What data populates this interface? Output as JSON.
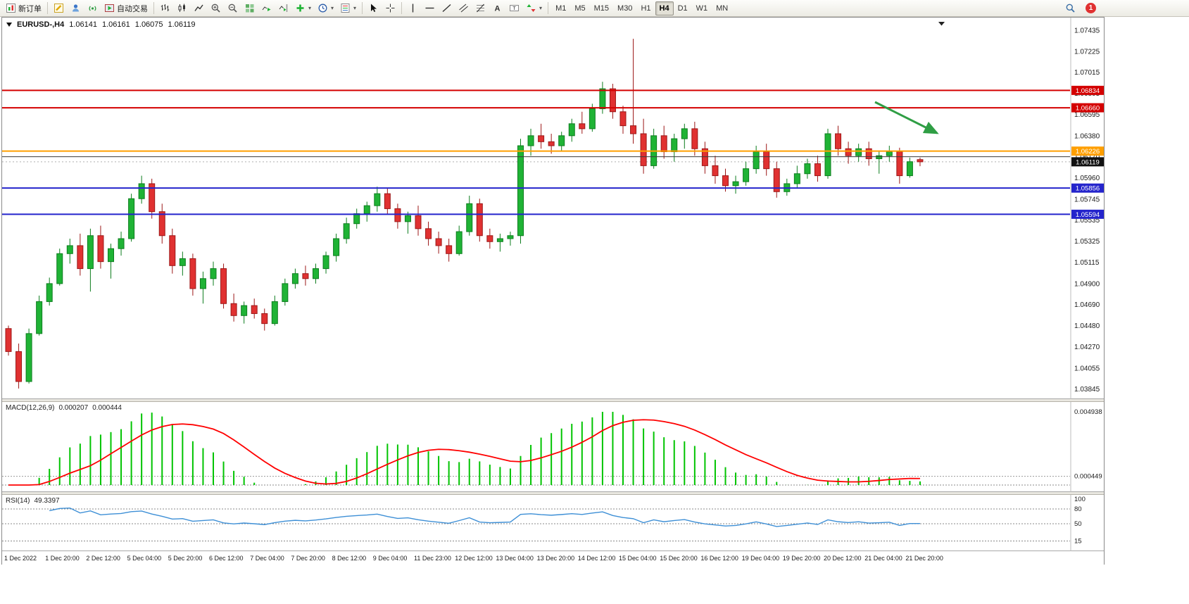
{
  "toolbar": {
    "new_order": "新订单",
    "auto_trading": "自动交易",
    "timeframes": [
      "M1",
      "M5",
      "M15",
      "M30",
      "H1",
      "H4",
      "D1",
      "W1",
      "MN"
    ],
    "active_timeframe": "H4",
    "notification_count": "1",
    "icons": {
      "text_tool": "A",
      "label_tool": "T"
    }
  },
  "window": {
    "symbol": "EURUSD-,H4",
    "ohlc": {
      "open": "1.06141",
      "high": "1.06161",
      "low": "1.06075",
      "close": "1.06119"
    }
  },
  "chart_data": {
    "type": "candlestick",
    "symbol": "EURUSD",
    "timeframe": "H4",
    "ylim": [
      1.038,
      1.0752
    ],
    "up_color": "#1fb335",
    "down_color": "#e03131",
    "up_border": "#0d7d1e",
    "down_border": "#9c1818",
    "y_ticks": [
      "1.07435",
      "1.07225",
      "1.07015",
      "1.06805",
      "1.06595",
      "1.06380",
      "1.06170",
      "1.05960",
      "1.05745",
      "1.05535",
      "1.05325",
      "1.05115",
      "1.04900",
      "1.04690",
      "1.04480",
      "1.04270",
      "1.04055",
      "1.03845"
    ],
    "x_labels": [
      "1 Dec 2022",
      "1 Dec 20:00",
      "2 Dec 12:00",
      "5 Dec 04:00",
      "5 Dec 20:00",
      "6 Dec 12:00",
      "7 Dec 04:00",
      "7 Dec 20:00",
      "8 Dec 12:00",
      "9 Dec 04:00",
      "11 Dec 23:00",
      "12 Dec 12:00",
      "13 Dec 04:00",
      "13 Dec 20:00",
      "14 Dec 12:00",
      "15 Dec 04:00",
      "15 Dec 20:00",
      "16 Dec 12:00",
      "19 Dec 04:00",
      "19 Dec 20:00",
      "20 Dec 12:00",
      "21 Dec 04:00",
      "21 Dec 20:00"
    ],
    "hlines": [
      {
        "price": 1.06834,
        "color": "#d40000",
        "width": 2,
        "label": "1.06834"
      },
      {
        "price": 1.0666,
        "color": "#d40000",
        "width": 2,
        "label": "1.06660"
      },
      {
        "price": 1.06226,
        "color": "#ff9f00",
        "width": 2,
        "label": "1.06226"
      },
      {
        "price": 1.0617,
        "color": "#3a3a3a",
        "width": 1,
        "label": null
      },
      {
        "price": 1.05856,
        "color": "#2424cc",
        "width": 2,
        "label": "1.05856"
      },
      {
        "price": 1.05594,
        "color": "#2424cc",
        "width": 2,
        "label": "1.05594"
      }
    ],
    "bid": {
      "price": 1.06119,
      "label": "1.06119",
      "box_color": "#111111"
    },
    "annotation_arrow": {
      "color": "#2f9e44"
    },
    "candles": [
      [
        1.0445,
        1.0448,
        1.0418,
        1.0422
      ],
      [
        1.0422,
        1.043,
        1.0385,
        1.0392
      ],
      [
        1.0392,
        1.0445,
        1.039,
        1.044
      ],
      [
        1.044,
        1.0478,
        1.0438,
        1.0472
      ],
      [
        1.0472,
        1.0496,
        1.0468,
        1.049
      ],
      [
        1.049,
        1.0525,
        1.0488,
        1.052
      ],
      [
        1.052,
        1.0535,
        1.051,
        1.0528
      ],
      [
        1.0528,
        1.054,
        1.0498,
        1.0505
      ],
      [
        1.0505,
        1.0545,
        1.0482,
        1.0538
      ],
      [
        1.0538,
        1.0548,
        1.0505,
        1.0512
      ],
      [
        1.0512,
        1.053,
        1.0495,
        1.0525
      ],
      [
        1.0525,
        1.0542,
        1.0518,
        1.0535
      ],
      [
        1.0535,
        1.058,
        1.0532,
        1.0575
      ],
      [
        1.0575,
        1.0598,
        1.057,
        1.059
      ],
      [
        1.059,
        1.0595,
        1.0555,
        1.0562
      ],
      [
        1.0562,
        1.057,
        1.053,
        1.0538
      ],
      [
        1.0538,
        1.0545,
        1.05,
        1.0508
      ],
      [
        1.0508,
        1.0522,
        1.0498,
        1.0515
      ],
      [
        1.0515,
        1.052,
        1.0478,
        1.0485
      ],
      [
        1.0485,
        1.0502,
        1.047,
        1.0495
      ],
      [
        1.0495,
        1.0512,
        1.0488,
        1.0505
      ],
      [
        1.0505,
        1.051,
        1.0465,
        1.047
      ],
      [
        1.047,
        1.048,
        1.0452,
        1.0458
      ],
      [
        1.0458,
        1.0472,
        1.045,
        1.0468
      ],
      [
        1.0468,
        1.0475,
        1.0455,
        1.046
      ],
      [
        1.046,
        1.0465,
        1.0443,
        1.045
      ],
      [
        1.045,
        1.0478,
        1.0448,
        1.0472
      ],
      [
        1.0472,
        1.0495,
        1.0468,
        1.049
      ],
      [
        1.049,
        1.0505,
        1.0485,
        1.05
      ],
      [
        1.05,
        1.0508,
        1.0488,
        1.0495
      ],
      [
        1.0495,
        1.051,
        1.049,
        1.0505
      ],
      [
        1.0505,
        1.0522,
        1.05,
        1.0518
      ],
      [
        1.0518,
        1.054,
        1.0512,
        1.0535
      ],
      [
        1.0535,
        1.0556,
        1.053,
        1.055
      ],
      [
        1.055,
        1.0565,
        1.0545,
        1.056
      ],
      [
        1.056,
        1.0572,
        1.0552,
        1.0568
      ],
      [
        1.0568,
        1.0587,
        1.0562,
        1.058
      ],
      [
        1.058,
        1.0585,
        1.056,
        1.0565
      ],
      [
        1.0565,
        1.057,
        1.0545,
        1.0552
      ],
      [
        1.0552,
        1.0562,
        1.054,
        1.0558
      ],
      [
        1.0558,
        1.0568,
        1.0538,
        1.0545
      ],
      [
        1.0545,
        1.0552,
        1.0528,
        1.0535
      ],
      [
        1.0535,
        1.0542,
        1.052,
        1.0528
      ],
      [
        1.0528,
        1.0535,
        1.0512,
        1.052
      ],
      [
        1.052,
        1.0548,
        1.0518,
        1.0542
      ],
      [
        1.0542,
        1.0578,
        1.0538,
        1.057
      ],
      [
        1.057,
        1.0575,
        1.0532,
        1.0538
      ],
      [
        1.0538,
        1.0545,
        1.0525,
        1.0532
      ],
      [
        1.0532,
        1.054,
        1.0522,
        1.0535
      ],
      [
        1.0535,
        1.0542,
        1.0528,
        1.0538
      ],
      [
        1.0538,
        1.0635,
        1.053,
        1.0628
      ],
      [
        1.0628,
        1.0645,
        1.0618,
        1.0638
      ],
      [
        1.0638,
        1.065,
        1.0625,
        1.0632
      ],
      [
        1.0632,
        1.064,
        1.062,
        1.0628
      ],
      [
        1.0628,
        1.0642,
        1.0622,
        1.0638
      ],
      [
        1.0638,
        1.0655,
        1.0632,
        1.065
      ],
      [
        1.065,
        1.0662,
        1.064,
        1.0645
      ],
      [
        1.0645,
        1.067,
        1.0642,
        1.0665
      ],
      [
        1.0665,
        1.0692,
        1.066,
        1.0685
      ],
      [
        1.0685,
        1.069,
        1.0655,
        1.0662
      ],
      [
        1.0662,
        1.0668,
        1.064,
        1.0648
      ],
      [
        1.0648,
        1.0735,
        1.063,
        1.064
      ],
      [
        1.064,
        1.0655,
        1.06,
        1.0608
      ],
      [
        1.0608,
        1.0645,
        1.0605,
        1.0638
      ],
      [
        1.0638,
        1.0648,
        1.0615,
        1.0622
      ],
      [
        1.0622,
        1.064,
        1.0612,
        1.0635
      ],
      [
        1.0635,
        1.065,
        1.0625,
        1.0645
      ],
      [
        1.0645,
        1.0652,
        1.0618,
        1.0625
      ],
      [
        1.0625,
        1.0632,
        1.06,
        1.0608
      ],
      [
        1.0608,
        1.0618,
        1.059,
        1.0598
      ],
      [
        1.0598,
        1.0605,
        1.0582,
        1.0588
      ],
      [
        1.0588,
        1.0598,
        1.058,
        1.0592
      ],
      [
        1.0592,
        1.0612,
        1.0588,
        1.0605
      ],
      [
        1.0605,
        1.0628,
        1.06,
        1.0622
      ],
      [
        1.0622,
        1.063,
        1.0598,
        1.0605
      ],
      [
        1.0605,
        1.0612,
        1.0576,
        1.0582
      ],
      [
        1.0582,
        1.0595,
        1.0578,
        1.059
      ],
      [
        1.059,
        1.0608,
        1.0585,
        1.06
      ],
      [
        1.06,
        1.0615,
        1.0595,
        1.061
      ],
      [
        1.061,
        1.0618,
        1.0592,
        1.0598
      ],
      [
        1.0598,
        1.0645,
        1.0595,
        1.064
      ],
      [
        1.064,
        1.0648,
        1.0618,
        1.0625
      ],
      [
        1.0625,
        1.0632,
        1.061,
        1.0618
      ],
      [
        1.0618,
        1.063,
        1.0612,
        1.0625
      ],
      [
        1.0625,
        1.0632,
        1.0608,
        1.0615
      ],
      [
        1.0615,
        1.0622,
        1.06,
        1.0618
      ],
      [
        1.0618,
        1.0628,
        1.0612,
        1.0622
      ],
      [
        1.0622,
        1.0626,
        1.059,
        1.0598
      ],
      [
        1.0598,
        1.06161,
        1.0596,
        1.0612
      ],
      [
        1.06141,
        1.06161,
        1.06075,
        1.06119
      ]
    ]
  },
  "macd": {
    "name": "MACD(12,26,9)",
    "value_main": "0.000207",
    "value_signal": "0.000444",
    "axis_max": "0.004938",
    "axis_level": "0.000449",
    "histogram_color": "#00c400",
    "signal_color": "#ff0000",
    "params": {
      "fast": 12,
      "slow": 26,
      "signal": 9
    }
  },
  "rsi": {
    "name": "RSI(14)",
    "value": "49.3397",
    "period": 14,
    "levels": [
      "100",
      "80",
      "50",
      "15"
    ],
    "line_color": "#3d8fd6"
  }
}
